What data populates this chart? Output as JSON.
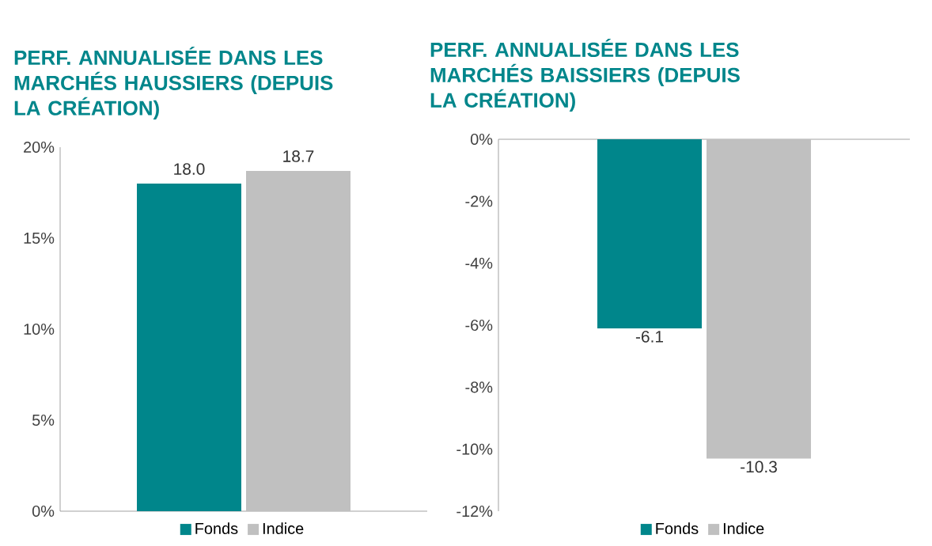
{
  "chart_data": [
    {
      "type": "bar",
      "title": "PERF. ANNUALISÉE DANS LES MARCHÉS HAUSSIERS (DEPUIS LA CRÉATION)",
      "categories": [
        null
      ],
      "series": [
        {
          "name": "Fonds",
          "color": "#00868b",
          "values": [
            18.0
          ],
          "value_labels": [
            "18.0"
          ]
        },
        {
          "name": "Indice",
          "color": "#c0c0c0",
          "values": [
            18.7
          ],
          "value_labels": [
            "18.7"
          ]
        }
      ],
      "ylim": [
        0,
        20
      ],
      "yticks": [
        {
          "value": 0,
          "label": "0%"
        },
        {
          "value": 5,
          "label": "5%"
        },
        {
          "value": 10,
          "label": "10%"
        },
        {
          "value": 15,
          "label": "15%"
        },
        {
          "value": 20,
          "label": "20%"
        }
      ],
      "legend": "bottom"
    },
    {
      "type": "bar",
      "title": "PERF. ANNUALISÉE DANS LES MARCHÉS BAISSIERS (DEPUIS LA CRÉATION)",
      "categories": [
        null
      ],
      "series": [
        {
          "name": "Fonds",
          "color": "#00868b",
          "values": [
            -6.1
          ],
          "value_labels": [
            "-6.1"
          ]
        },
        {
          "name": "Indice",
          "color": "#c0c0c0",
          "values": [
            -10.3
          ],
          "value_labels": [
            "-10.3"
          ]
        }
      ],
      "ylim": [
        -12,
        0
      ],
      "yticks": [
        {
          "value": -12,
          "label": "-12%"
        },
        {
          "value": -10,
          "label": "-10%"
        },
        {
          "value": -8,
          "label": "-8%"
        },
        {
          "value": -6,
          "label": "-6%"
        },
        {
          "value": -4,
          "label": "-4%"
        },
        {
          "value": -2,
          "label": "-2%"
        },
        {
          "value": 0,
          "label": "0%"
        }
      ],
      "legend": "bottom"
    }
  ]
}
